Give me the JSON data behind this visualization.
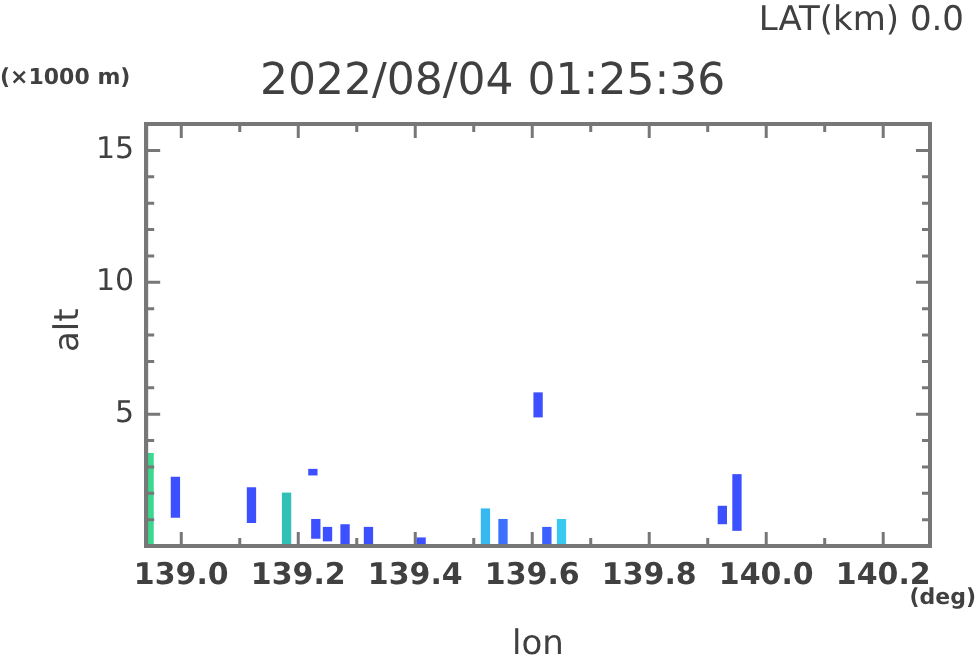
{
  "chart_data": {
    "type": "bar",
    "title": "2022/08/04 01:25:36",
    "subtitle": "LAT(km) 0.0",
    "xlabel": "lon",
    "ylabel": "alt",
    "annotations": [
      "(×1000 m)",
      "(deg)"
    ],
    "x": [
      138.945,
      138.99,
      139.12,
      139.18,
      139.225,
      139.23,
      139.25,
      139.28,
      139.32,
      139.41,
      139.52,
      139.55,
      139.61,
      139.625,
      139.65,
      139.925,
      139.95
    ],
    "base": [
      0,
      1.1,
      0.9,
      0,
      2.7,
      0.3,
      0.2,
      0,
      0,
      0,
      0,
      0,
      4.9,
      0,
      0,
      0.85,
      0.6
    ],
    "values": [
      3.5,
      1.5,
      1.3,
      2.0,
      0.2,
      0.7,
      0.5,
      0.8,
      0.7,
      0.3,
      1.4,
      1.0,
      0.9,
      0.7,
      1.0,
      0.65,
      2.1
    ],
    "colors": [
      "#3cd890",
      "#3c50ff",
      "#3c50ff",
      "#30c0b8",
      "#3c50ff",
      "#3c50ff",
      "#3c50ff",
      "#3c50ff",
      "#3c50ff",
      "#3c50ff",
      "#38b8f0",
      "#3c70ff",
      "#3c50ff",
      "#3c60ff",
      "#38c8f0",
      "#3c50ff",
      "#3c50ff"
    ],
    "xlim": [
      138.94,
      140.28
    ],
    "xticks": [
      {
        "value": 139,
        "label": "139.0"
      },
      {
        "value": 139.1,
        "label": null
      },
      139.2,
      {
        "value": 139.3,
        "label": null
      },
      139.4,
      {
        "value": 139.5,
        "label": null
      },
      139.6,
      {
        "value": 139.7,
        "label": null
      },
      139.8,
      {
        "value": 139.9,
        "label": null
      },
      {
        "value": 140,
        "label": "140.0"
      },
      {
        "value": 140.1,
        "label": null
      },
      140.2
    ],
    "ylim": [
      0,
      16
    ],
    "yticks": [
      {
        "value": 1,
        "label": null
      },
      {
        "value": 2,
        "label": null
      },
      {
        "value": 3,
        "label": null
      },
      {
        "value": 4,
        "label": null
      },
      5,
      {
        "value": 6,
        "label": null
      },
      {
        "value": 7,
        "label": null
      },
      {
        "value": 8,
        "label": null
      },
      {
        "value": 9,
        "label": null
      },
      10,
      {
        "value": 11,
        "label": null
      },
      {
        "value": 12,
        "label": null
      },
      {
        "value": 13,
        "label": null
      },
      {
        "value": 14,
        "label": null
      },
      15,
      {
        "value": 16,
        "label": null
      }
    ],
    "grid": false,
    "legend": false
  }
}
